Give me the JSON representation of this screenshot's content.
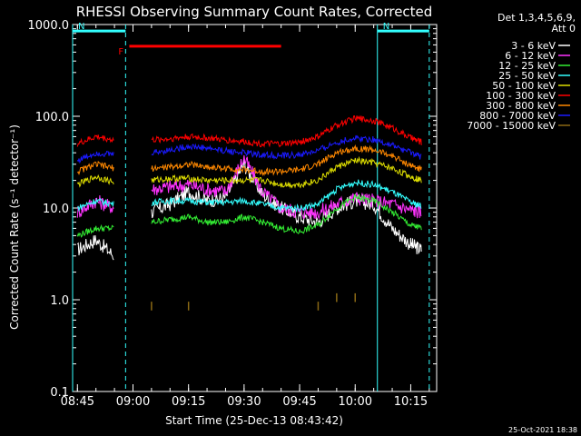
{
  "chart_data": {
    "type": "line",
    "title": "RHESSI Observing Summary Count Rates, Corrected",
    "xlabel": "Start Time (25-Dec-13 08:43:42)",
    "ylabel": "Corrected Count Rate (s⁻¹ detector⁻¹)",
    "y_scale": "log",
    "ylim": [
      0.1,
      1000
    ],
    "xlim": [
      "08:43:42",
      "10:22:00"
    ],
    "x_ticks": [
      "08:45",
      "09:00",
      "09:15",
      "09:30",
      "09:45",
      "10:00",
      "10:15"
    ],
    "y_ticks": [
      "0.1",
      "1.0",
      "10.0",
      "100.0",
      "1000.0"
    ],
    "legend_header": [
      "Det 1,3,4,5,6,9,",
      "Att 0"
    ],
    "legend_position": "top-right",
    "x": [
      "08:45",
      "08:50",
      "08:55",
      "09:00",
      "09:05",
      "09:10",
      "09:15",
      "09:20",
      "09:25",
      "09:30",
      "09:35",
      "09:40",
      "09:45",
      "09:50",
      "09:55",
      "10:00",
      "10:05",
      "10:10",
      "10:15",
      "10:18"
    ],
    "series": [
      {
        "name": "3 - 6 keV",
        "color": "#ffffff",
        "values": [
          3.5,
          4.5,
          3.0,
          null,
          9.0,
          11.0,
          15.0,
          12.0,
          13.0,
          30.0,
          14.0,
          10.0,
          8.0,
          7.0,
          10.0,
          12.0,
          11.0,
          6.0,
          4.0,
          3.5
        ]
      },
      {
        "name": "6 - 12 keV",
        "color": "#ff33ff",
        "values": [
          9.0,
          12.0,
          10.0,
          null,
          16.0,
          17.0,
          18.0,
          16.0,
          15.0,
          35.0,
          15.0,
          10.0,
          9.0,
          9.0,
          11.0,
          13.0,
          12.0,
          11.0,
          9.5,
          9.0
        ]
      },
      {
        "name": "12 - 25 keV",
        "color": "#33ee33",
        "values": [
          5.0,
          6.0,
          6.0,
          null,
          7.0,
          7.5,
          8.0,
          7.0,
          7.0,
          8.0,
          7.0,
          6.0,
          5.5,
          6.5,
          10.0,
          13.0,
          12.0,
          9.0,
          6.5,
          6.0
        ]
      },
      {
        "name": "25 - 50 keV",
        "color": "#33ffff",
        "values": [
          10.0,
          12.0,
          11.0,
          null,
          11.5,
          12.0,
          12.0,
          11.5,
          11.5,
          12.0,
          11.0,
          10.0,
          10.0,
          11.0,
          16.0,
          19.0,
          18.0,
          15.0,
          11.5,
          10.5
        ]
      },
      {
        "name": "50 - 100 keV",
        "color": "#dddd00",
        "values": [
          18.0,
          22.0,
          19.0,
          null,
          20.0,
          21.0,
          21.0,
          20.0,
          20.0,
          20.0,
          20.0,
          18.0,
          18.0,
          20.0,
          28.0,
          33.0,
          31.0,
          27.0,
          22.0,
          20.0
        ]
      },
      {
        "name": "100 - 300 keV",
        "color": "#ff0000",
        "values": [
          50.0,
          60.0,
          55.0,
          null,
          55.0,
          57.0,
          60.0,
          58.0,
          55.0,
          53.0,
          50.0,
          50.0,
          52.0,
          60.0,
          80.0,
          95.0,
          90.0,
          75.0,
          58.0,
          52.0
        ]
      },
      {
        "name": "300 - 800 keV",
        "color": "#ff8800",
        "values": [
          25.0,
          30.0,
          27.0,
          null,
          27.0,
          28.0,
          30.0,
          28.0,
          27.0,
          26.0,
          25.0,
          25.0,
          26.0,
          30.0,
          40.0,
          45.0,
          43.0,
          37.0,
          29.0,
          26.0
        ]
      },
      {
        "name": "800 - 7000 keV",
        "color": "#1a1aff",
        "values": [
          33.0,
          40.0,
          38.0,
          null,
          40.0,
          43.0,
          47.0,
          45.0,
          42.0,
          40.0,
          38.0,
          37.0,
          38.0,
          42.0,
          52.0,
          58.0,
          56.0,
          48.0,
          40.0,
          36.0
        ]
      },
      {
        "name": "7000 - 15000 keV",
        "color": "#8b6914",
        "values": [
          null,
          null,
          null,
          null,
          0.85,
          null,
          0.85,
          null,
          null,
          null,
          null,
          null,
          null,
          0.85,
          1.05,
          1.05,
          null,
          null,
          null,
          null
        ]
      }
    ],
    "flags": [
      {
        "label": "N",
        "color": "#33ffff",
        "from": "08:43:42",
        "to": "08:58",
        "level": 850
      },
      {
        "label": "N",
        "color": "#33ffff",
        "from": "10:06",
        "to": "10:20",
        "level": 850
      },
      {
        "label": "F",
        "color": "#ff0000",
        "from": "08:59",
        "to": "09:40",
        "level": 580
      }
    ],
    "vertical_markers": [
      {
        "at": "08:43:42",
        "style": "solid",
        "color": "#33ffff"
      },
      {
        "at": "08:58",
        "style": "dashed",
        "color": "#33ffff"
      },
      {
        "at": "10:06",
        "style": "solid",
        "color": "#33ffff"
      },
      {
        "at": "10:20",
        "style": "dashed",
        "color": "#33ffff"
      }
    ]
  },
  "footer": {
    "timestamp": "25-Oct-2021 18:38"
  }
}
